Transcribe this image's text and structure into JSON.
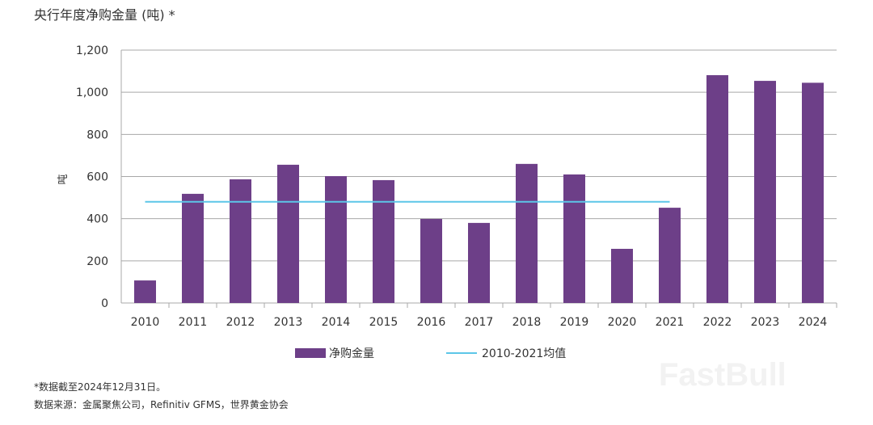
{
  "chart_data": {
    "type": "bar",
    "title": "央行年度净购金量 (吨) *",
    "ylabel": "吨",
    "xlabel": "",
    "ylim": [
      0,
      1200
    ],
    "yticks": [
      0,
      200,
      400,
      600,
      800,
      1000,
      1200
    ],
    "ytick_labels": [
      "0",
      "200",
      "400",
      "600",
      "800",
      "1,000",
      "1,200"
    ],
    "grid": true,
    "legend_position": "bottom",
    "categories": [
      "2010",
      "2011",
      "2012",
      "2013",
      "2014",
      "2015",
      "2016",
      "2017",
      "2018",
      "2019",
      "2020",
      "2021",
      "2022",
      "2023",
      "2024"
    ],
    "series": [
      {
        "name": "净购金量",
        "type": "bar",
        "color": "#6d3f88",
        "values": [
          107,
          518,
          587,
          656,
          602,
          583,
          399,
          380,
          660,
          610,
          257,
          452,
          1081,
          1054,
          1045
        ]
      },
      {
        "name": "2010-2021均值",
        "type": "line",
        "color": "#5cc6e8",
        "x_range": [
          "2010",
          "2021"
        ],
        "value": 480
      }
    ]
  },
  "notes": {
    "footnote": "*数据截至2024年12月31日。",
    "source": "数据来源：金属聚焦公司，Refinitiv GFMS，世界黄金协会"
  },
  "watermark": "FastBull"
}
